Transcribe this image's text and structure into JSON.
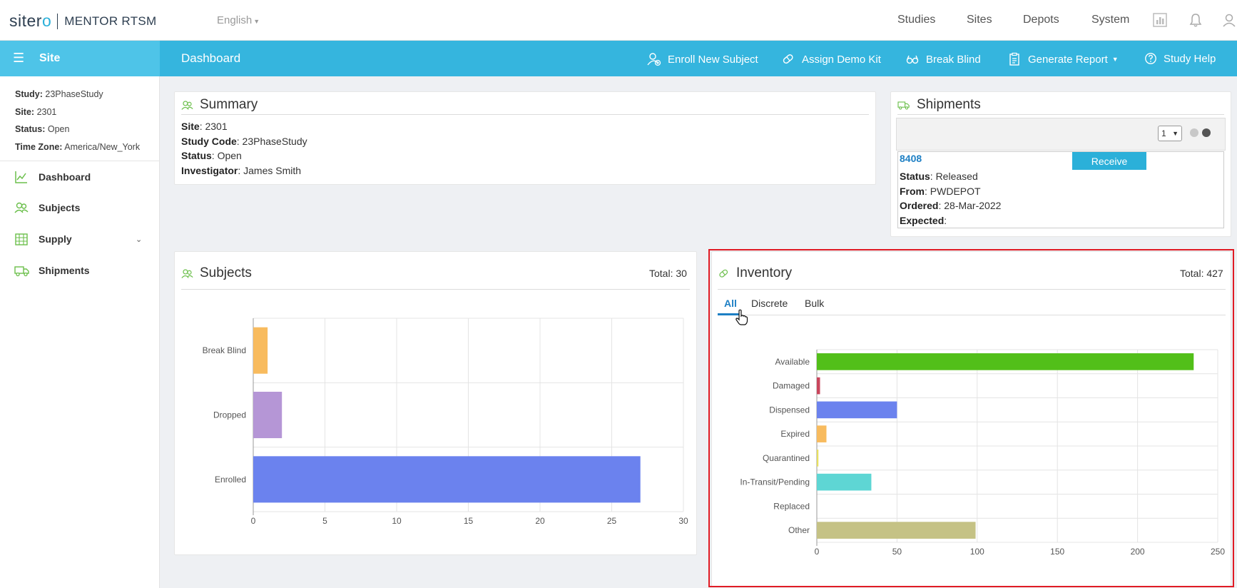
{
  "topbar": {
    "logo_brand": "siter",
    "logo_brand_o": "o",
    "logo_product": "MENTOR RTSM",
    "language": "English",
    "nav": [
      "Studies",
      "Sites",
      "Depots",
      "System"
    ],
    "icons": [
      "chart-icon",
      "bell-icon",
      "user-icon"
    ]
  },
  "sidehead": {
    "title": "Site"
  },
  "mainhead": {
    "title": "Dashboard",
    "actions": [
      {
        "label": "Enroll New Subject",
        "icon": "user-add-icon"
      },
      {
        "label": "Assign Demo Kit",
        "icon": "pill-icon"
      },
      {
        "label": "Break Blind",
        "icon": "glasses-icon"
      },
      {
        "label": "Generate Report",
        "icon": "clipboard-icon"
      },
      {
        "label": "Study Help",
        "icon": "help-icon"
      }
    ]
  },
  "sidebar": {
    "meta": [
      {
        "key": "Study:",
        "value": "23PhaseStudy"
      },
      {
        "key": "Site:",
        "value": "2301"
      },
      {
        "key": "Status:",
        "value": "Open"
      },
      {
        "key": "Time Zone:",
        "value": "America/New_York"
      }
    ],
    "items": [
      {
        "label": "Dashboard",
        "icon": "line-chart-icon"
      },
      {
        "label": "Subjects",
        "icon": "users-icon"
      },
      {
        "label": "Supply",
        "icon": "grid-icon"
      },
      {
        "label": "Shipments",
        "icon": "truck-icon"
      }
    ]
  },
  "summary": {
    "title": "Summary",
    "rows": [
      {
        "key": "Site",
        "value": ": 2301"
      },
      {
        "key": "Study Code",
        "value": ": 23PhaseStudy"
      },
      {
        "key": "Status",
        "value": ": Open"
      },
      {
        "key": "Investigator",
        "value": ": James Smith"
      }
    ]
  },
  "shipments": {
    "title": "Shipments",
    "page_select": "1",
    "id": "8408",
    "receive_label": "Receive",
    "rows": [
      {
        "key": "Status",
        "value": ": Released"
      },
      {
        "key": "From",
        "value": ": PWDEPOT"
      },
      {
        "key": "Ordered",
        "value": ": 28-Mar-2022"
      },
      {
        "key": "Expected",
        "value": ":"
      }
    ]
  },
  "subjects": {
    "title": "Subjects",
    "total": "Total: 30"
  },
  "inventory": {
    "title": "Inventory",
    "total": "Total: 427",
    "tabs": [
      "All",
      "Discrete",
      "Bulk"
    ]
  },
  "chart_data": [
    {
      "type": "bar",
      "orientation": "horizontal",
      "categories": [
        "Break Blind",
        "Dropped",
        "Enrolled"
      ],
      "values": [
        1,
        2,
        27
      ],
      "colors": [
        "#f8bb5e",
        "#b596d6",
        "#6b82ee"
      ],
      "xlim": [
        0,
        30
      ],
      "xticks": [
        0,
        5,
        10,
        15,
        20,
        25,
        30
      ],
      "grid": true
    },
    {
      "type": "bar",
      "orientation": "horizontal",
      "categories": [
        "Available",
        "Damaged",
        "Dispensed",
        "Expired",
        "Quarantined",
        "In-Transit/Pending",
        "Replaced",
        "Other"
      ],
      "values": [
        235,
        2,
        50,
        6,
        1,
        34,
        0,
        99
      ],
      "colors": [
        "#52bf19",
        "#c9465c",
        "#6b82ee",
        "#f8bb5e",
        "#e8e060",
        "#5ed6d4",
        "#aaaaaa",
        "#c5c285"
      ],
      "xlim": [
        0,
        250
      ],
      "xticks": [
        0,
        50,
        100,
        150,
        200,
        250
      ],
      "grid": true
    }
  ]
}
